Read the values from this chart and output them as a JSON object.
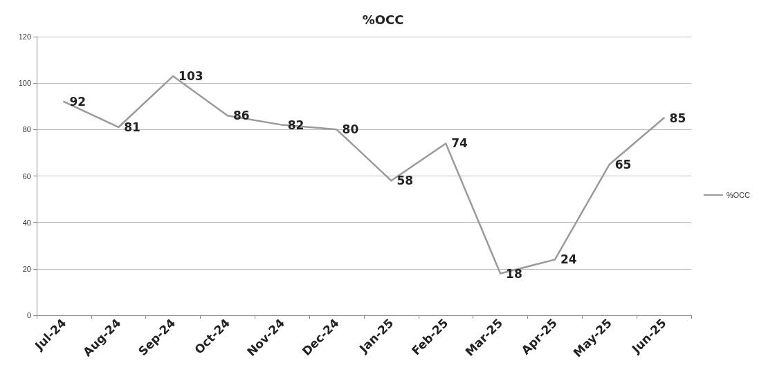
{
  "chart_data": {
    "type": "line",
    "title": "%OCC",
    "categories": [
      "Jul-24",
      "Aug-24",
      "Sep-24",
      "Oct-24",
      "Nov-24",
      "Dec-24",
      "Jan-25",
      "Feb-25",
      "Mar-25",
      "Apr-25",
      "May-25",
      "Jun-25"
    ],
    "series": [
      {
        "name": "%OCC",
        "color": "#9a9a9a",
        "values": [
          92,
          81,
          103,
          86,
          82,
          80,
          58,
          74,
          18,
          24,
          65,
          85
        ]
      }
    ],
    "ylim": [
      0,
      120
    ],
    "yticks": [
      0,
      20,
      40,
      60,
      80,
      100,
      120
    ],
    "grid": "y",
    "legend": "right",
    "data_labels": true,
    "marker": "none",
    "line_style": "solid"
  }
}
